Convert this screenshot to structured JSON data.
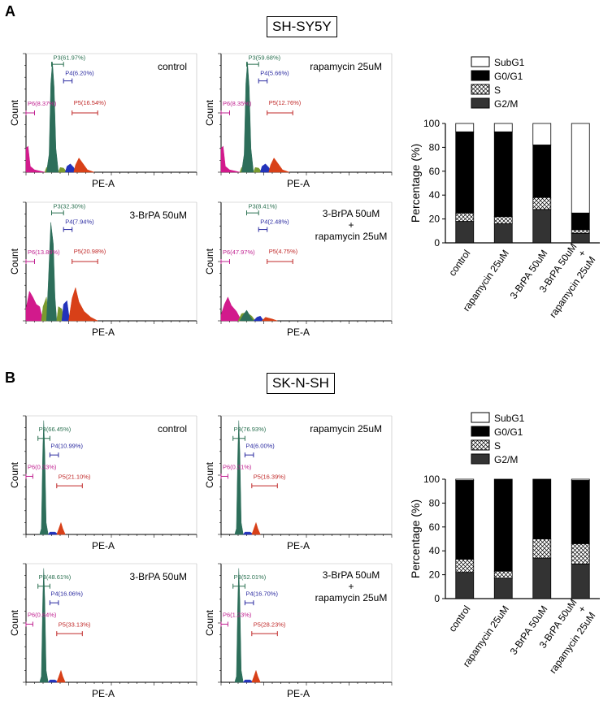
{
  "colors": {
    "p6": "#d21a8c",
    "g1_peak": "#2d6e5a",
    "s_phase": "#7a9a2e",
    "g2": "#2233bb",
    "p5": "#d84018",
    "p3_label": "#2a7050",
    "p4_label": "#2a2aa0",
    "p5_label": "#c02828",
    "p6_label": "#c02090",
    "subg1_fill": "#ffffff",
    "g0g1_fill": "#000000",
    "s_fill": "hatched",
    "g2m_fill": "#333333"
  },
  "sections": [
    {
      "letter": "A",
      "cell_line": "SH-SY5Y",
      "plots": [
        {
          "condition_lines": [
            "control"
          ],
          "gates": {
            "p3": "P3(61.97%)",
            "p4": "P4(6.20%)",
            "p5": "P5(16.54%)",
            "p6": "P6(8.37%)"
          },
          "ylabel": "Count",
          "xlabel": "PE-A"
        },
        {
          "condition_lines": [
            "rapamycin 25uM"
          ],
          "gates": {
            "p3": "P3(59.68%)",
            "p4": "P4(5.66%)",
            "p5": "P5(12.76%)",
            "p6": "P6(8.35%)"
          },
          "ylabel": "Count",
          "xlabel": "PE-A"
        },
        {
          "condition_lines": [
            "3-BrPA 50uM"
          ],
          "gates": {
            "p3": "P3(32.30%)",
            "p4": "P4(7.94%)",
            "p5": "P5(20.98%)",
            "p6": "P6(13.89%)"
          },
          "ylabel": "Count",
          "xlabel": "PE-A"
        },
        {
          "condition_lines": [
            "3-BrPA 50uM",
            "+",
            "rapamycin 25uM"
          ],
          "gates": {
            "p3": "P3(8.41%)",
            "p4": "P4(2.48%)",
            "p5": "P5(4.75%)",
            "p6": "P6(47.97%)"
          },
          "ylabel": "Count",
          "xlabel": "PE-A"
        }
      ]
    },
    {
      "letter": "B",
      "cell_line": "SK-N-SH",
      "plots": [
        {
          "condition_lines": [
            "control"
          ],
          "gates": {
            "p3": "P3(66.45%)",
            "p4": "P4(10.99%)",
            "p5": "P5(21.10%)",
            "p6": "P6(0.33%)"
          },
          "ylabel": "Count",
          "xlabel": "PE-A"
        },
        {
          "condition_lines": [
            "rapamycin 25uM"
          ],
          "gates": {
            "p3": "P3(76.93%)",
            "p4": "P4(6.00%)",
            "p5": "P5(16.39%)",
            "p6": "P6(0.31%)"
          },
          "ylabel": "Count",
          "xlabel": "PE-A"
        },
        {
          "condition_lines": [
            "3-BrPA 50uM"
          ],
          "gates": {
            "p3": "P3(48.61%)",
            "p4": "P4(16.06%)",
            "p5": "P5(33.13%)",
            "p6": "P6(0.64%)"
          },
          "ylabel": "Count",
          "xlabel": "PE-A"
        },
        {
          "condition_lines": [
            "3-BrPA 50uM",
            "+",
            "rapamycin 25uM"
          ],
          "gates": {
            "p3": "P3(52.01%)",
            "p4": "P4(16.70%)",
            "p5": "P5(28.23%)",
            "p6": "P6(1.23%)"
          },
          "ylabel": "Count",
          "xlabel": "PE-A"
        }
      ]
    }
  ],
  "chart_data": [
    {
      "type": "bar",
      "stacked": true,
      "panel": "A",
      "categories": [
        "control",
        "rapamycin 25uM",
        "3-BrPA 50uM",
        "3-BrPA 50uM\n+\nrapamycin 25uM"
      ],
      "category_lines": [
        [
          "control"
        ],
        [
          "rapamycin 25uM"
        ],
        [
          "3-BrPA 50uM"
        ],
        [
          "3-BrPA 50uM",
          "+",
          "rapamycin 25uM"
        ]
      ],
      "series": [
        {
          "name": "G2/M",
          "values": [
            18,
            16,
            28,
            8
          ]
        },
        {
          "name": "S",
          "values": [
            7,
            6,
            10,
            3
          ]
        },
        {
          "name": "G0/G1",
          "values": [
            68,
            71,
            44,
            14
          ]
        },
        {
          "name": "SubG1",
          "values": [
            7,
            7,
            18,
            75
          ]
        }
      ],
      "legend": [
        "SubG1",
        "G0/G1",
        "S",
        "G2/M"
      ],
      "ylabel": "Percentage (%)",
      "ylim": [
        0,
        100
      ],
      "yticks": [
        "0",
        "20",
        "40",
        "60",
        "80",
        "100"
      ]
    },
    {
      "type": "bar",
      "stacked": true,
      "panel": "B",
      "categories": [
        "control",
        "rapamycin 25uM",
        "3-BrPA 50uM",
        "3-BrPA 50uM\n+\nrapamycin 25uM"
      ],
      "category_lines": [
        [
          "control"
        ],
        [
          "rapamycin 25uM"
        ],
        [
          "3-BrPA 50uM"
        ],
        [
          "3-BrPA 50uM",
          "+",
          "rapamycin 25uM"
        ]
      ],
      "series": [
        {
          "name": "G2/M",
          "values": [
            22,
            17,
            34,
            29
          ]
        },
        {
          "name": "S",
          "values": [
            11,
            6,
            16,
            17
          ]
        },
        {
          "name": "G0/G1",
          "values": [
            66,
            77,
            50,
            53
          ]
        },
        {
          "name": "SubG1",
          "values": [
            1,
            0,
            0,
            1
          ]
        }
      ],
      "legend": [
        "SubG1",
        "G0/G1",
        "S",
        "G2/M"
      ],
      "ylabel": "Percentage (%)",
      "ylim": [
        0,
        100
      ],
      "yticks": [
        "0",
        "20",
        "40",
        "60",
        "80",
        "100"
      ]
    }
  ]
}
